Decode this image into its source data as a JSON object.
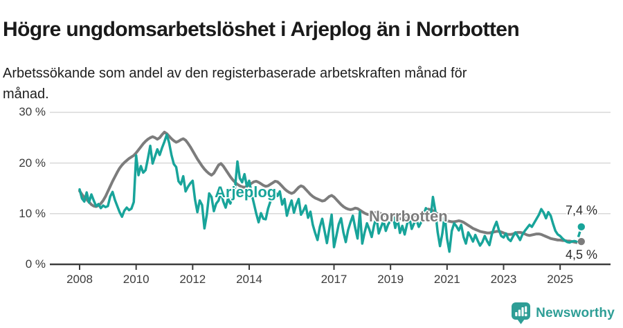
{
  "title": "Högre ungdomsarbetslöshet i Arjeplog än i Norrbotten",
  "subtitle": {
    "full": "Arbetssökande som andel av den registerbaserade arbetskraften månad för månad.",
    "line1": "Arbetssökande som andel av den registerbaserade arbetskraften månad för",
    "line2": "månad."
  },
  "branding": {
    "logo_text": "Newsworthy",
    "logo_icon": "bar-chart-pin-icon"
  },
  "colors": {
    "arjeplog": "#18a49a",
    "norrbotten": "#7c7c7c",
    "grid": "#d8d8d8",
    "axis": "#3c3c3c",
    "text": "#1a1a1a",
    "tick_text": "#3b3b3b"
  },
  "chart_data": {
    "type": "line",
    "title": "Högre ungdomsarbetslöshet i Arjeplog än i Norrbotten",
    "x_unit": "month",
    "x_start": "2008-01",
    "x_end": "2025-10",
    "y_unit": "%",
    "ylim": [
      0,
      31
    ],
    "grid": "horizontal",
    "legend_position": "inline-labels",
    "x_ticks": [
      {
        "label": "2008",
        "year": 2008
      },
      {
        "label": "2010",
        "year": 2010
      },
      {
        "label": "2012",
        "year": 2012
      },
      {
        "label": "2014",
        "year": 2014
      },
      {
        "label": "2017",
        "year": 2017
      },
      {
        "label": "2019",
        "year": 2019
      },
      {
        "label": "2021",
        "year": 2021
      },
      {
        "label": "2023",
        "year": 2023
      },
      {
        "label": "2025",
        "year": 2025
      }
    ],
    "y_ticks": [
      {
        "label": "0 %",
        "value": 0
      },
      {
        "label": "10 %",
        "value": 10
      },
      {
        "label": "20 %",
        "value": 20
      },
      {
        "label": "30 %",
        "value": 30
      }
    ],
    "dashed_tail_points": 5,
    "series": [
      {
        "name": "Arjeplog",
        "color": "#18a49a",
        "end_label": "7,4 %",
        "end_value": 7.4,
        "values": [
          14.8,
          13.0,
          12.4,
          14.2,
          12.2,
          13.8,
          12.6,
          11.5,
          11.9,
          11.1,
          11.6,
          11.3,
          11.5,
          13.4,
          14.3,
          12.7,
          11.5,
          10.3,
          9.4,
          10.6,
          11.2,
          10.7,
          11.0,
          12.3,
          21.5,
          17.6,
          19.4,
          18.1,
          18.6,
          20.9,
          23.4,
          19.9,
          21.3,
          22.7,
          21.6,
          23.0,
          24.2,
          25.6,
          24.0,
          21.6,
          19.8,
          19.2,
          16.4,
          15.8,
          17.4,
          14.4,
          15.3,
          16.0,
          16.5,
          12.8,
          10.3,
          12.6,
          11.7,
          7.1,
          9.8,
          14.0,
          13.3,
          10.5,
          12.0,
          12.6,
          14.2,
          12.4,
          11.2,
          13.0,
          12.0,
          13.5,
          15.2,
          20.3,
          17.0,
          16.2,
          17.8,
          15.4,
          16.5,
          14.0,
          12.0,
          10.0,
          8.3,
          10.1,
          9.0,
          8.9,
          11.0,
          12.4,
          13.5,
          14.4,
          13.5,
          14.4,
          11.8,
          12.9,
          9.6,
          11.3,
          12.6,
          10.2,
          11.8,
          12.9,
          9.8,
          10.6,
          11.6,
          9.2,
          10.4,
          7.8,
          6.2,
          4.8,
          7.4,
          9.0,
          6.6,
          4.2,
          7.0,
          9.8,
          3.4,
          5.6,
          7.9,
          9.1,
          6.3,
          4.4,
          6.8,
          8.3,
          9.6,
          7.2,
          5.1,
          10.4,
          4.1,
          6.3,
          8.1,
          6.9,
          5.4,
          7.7,
          9.3,
          6.1,
          7.4,
          8.6,
          6.6,
          7.9,
          8.6,
          9.7,
          7.2,
          9.0,
          6.2,
          7.6,
          5.9,
          7.9,
          9.2,
          7.0,
          8.1,
          8.8,
          7.4,
          8.3,
          9.6,
          11.1,
          10.3,
          9.1,
          13.3,
          10.6,
          6.4,
          3.6,
          6.1,
          9.8,
          5.1,
          2.5,
          6.6,
          8.1,
          7.5,
          6.7,
          7.8,
          5.4,
          4.1,
          6.3,
          5.5,
          4.5,
          5.8,
          4.7,
          3.7,
          4.4,
          5.6,
          4.6,
          3.8,
          5.9,
          7.3,
          8.4,
          6.8,
          5.6,
          5.3,
          6.1,
          5.0,
          4.6,
          5.5,
          6.3,
          5.6,
          4.8,
          5.9,
          6.6,
          7.2,
          7.8,
          7.4,
          8.2,
          9.0,
          9.8,
          10.9,
          10.2,
          9.1,
          10.3,
          9.6,
          8.0,
          6.6,
          5.9,
          5.6,
          5.1,
          4.7,
          4.4,
          4.3,
          4.5,
          4.6,
          4.5,
          5.8,
          7.4
        ]
      },
      {
        "name": "Norrbotten",
        "color": "#7c7c7c",
        "end_label": "4,5 %",
        "end_value": 4.5,
        "values": [
          14.5,
          13.8,
          13.2,
          12.8,
          12.3,
          11.8,
          11.5,
          11.4,
          11.6,
          12.0,
          12.6,
          13.4,
          14.4,
          15.4,
          16.4,
          17.3,
          18.2,
          19.0,
          19.6,
          20.1,
          20.5,
          20.9,
          21.2,
          21.5,
          22.0,
          22.6,
          23.2,
          23.8,
          24.3,
          24.7,
          25.0,
          25.2,
          25.0,
          24.7,
          25.0,
          25.6,
          26.1,
          25.8,
          25.3,
          24.8,
          24.4,
          24.1,
          24.3,
          24.6,
          24.8,
          24.5,
          23.9,
          23.2,
          22.4,
          21.6,
          20.8,
          20.1,
          19.4,
          18.8,
          18.3,
          17.9,
          17.6,
          18.0,
          18.8,
          19.6,
          19.9,
          19.4,
          18.7,
          18.0,
          17.3,
          16.7,
          16.2,
          15.8,
          15.5,
          15.3,
          15.2,
          15.4,
          15.7,
          16.0,
          16.3,
          16.4,
          16.2,
          15.9,
          15.6,
          15.4,
          15.5,
          15.8,
          16.1,
          16.4,
          16.3,
          15.9,
          15.4,
          14.9,
          14.5,
          14.2,
          14.0,
          14.2,
          14.7,
          15.2,
          15.5,
          15.3,
          14.8,
          14.3,
          13.8,
          13.4,
          13.1,
          12.9,
          12.7,
          12.5,
          12.6,
          13.0,
          13.4,
          13.6,
          13.3,
          12.8,
          12.3,
          11.8,
          11.4,
          11.1,
          10.9,
          10.8,
          10.9,
          11.1,
          11.0,
          10.7,
          10.4,
          10.1,
          9.9,
          9.8,
          9.9,
          10.1,
          10.3,
          10.2,
          10.0,
          9.8,
          9.6,
          9.5,
          9.4,
          9.3,
          9.2,
          9.1,
          9.0,
          9.0,
          9.1,
          9.2,
          9.3,
          9.4,
          9.5,
          9.6,
          9.8,
          10.0,
          10.3,
          10.7,
          10.9,
          10.8,
          10.6,
          10.3,
          9.9,
          9.5,
          9.1,
          8.8,
          8.6,
          8.5,
          8.4,
          8.4,
          8.5,
          8.6,
          8.5,
          8.3,
          8.0,
          7.7,
          7.4,
          7.1,
          6.9,
          6.7,
          6.5,
          6.4,
          6.3,
          6.2,
          6.2,
          6.3,
          6.4,
          6.5,
          6.5,
          6.4,
          6.2,
          6.0,
          5.9,
          5.9,
          6.0,
          6.2,
          6.3,
          6.3,
          6.2,
          6.0,
          5.8,
          5.7,
          5.8,
          5.9,
          6.0,
          6.0,
          5.9,
          5.7,
          5.5,
          5.3,
          5.1,
          5.0,
          4.9,
          4.8,
          4.8,
          4.7,
          4.7,
          4.6,
          4.6,
          4.5,
          4.4,
          4.3,
          4.2,
          4.5
        ]
      }
    ]
  }
}
